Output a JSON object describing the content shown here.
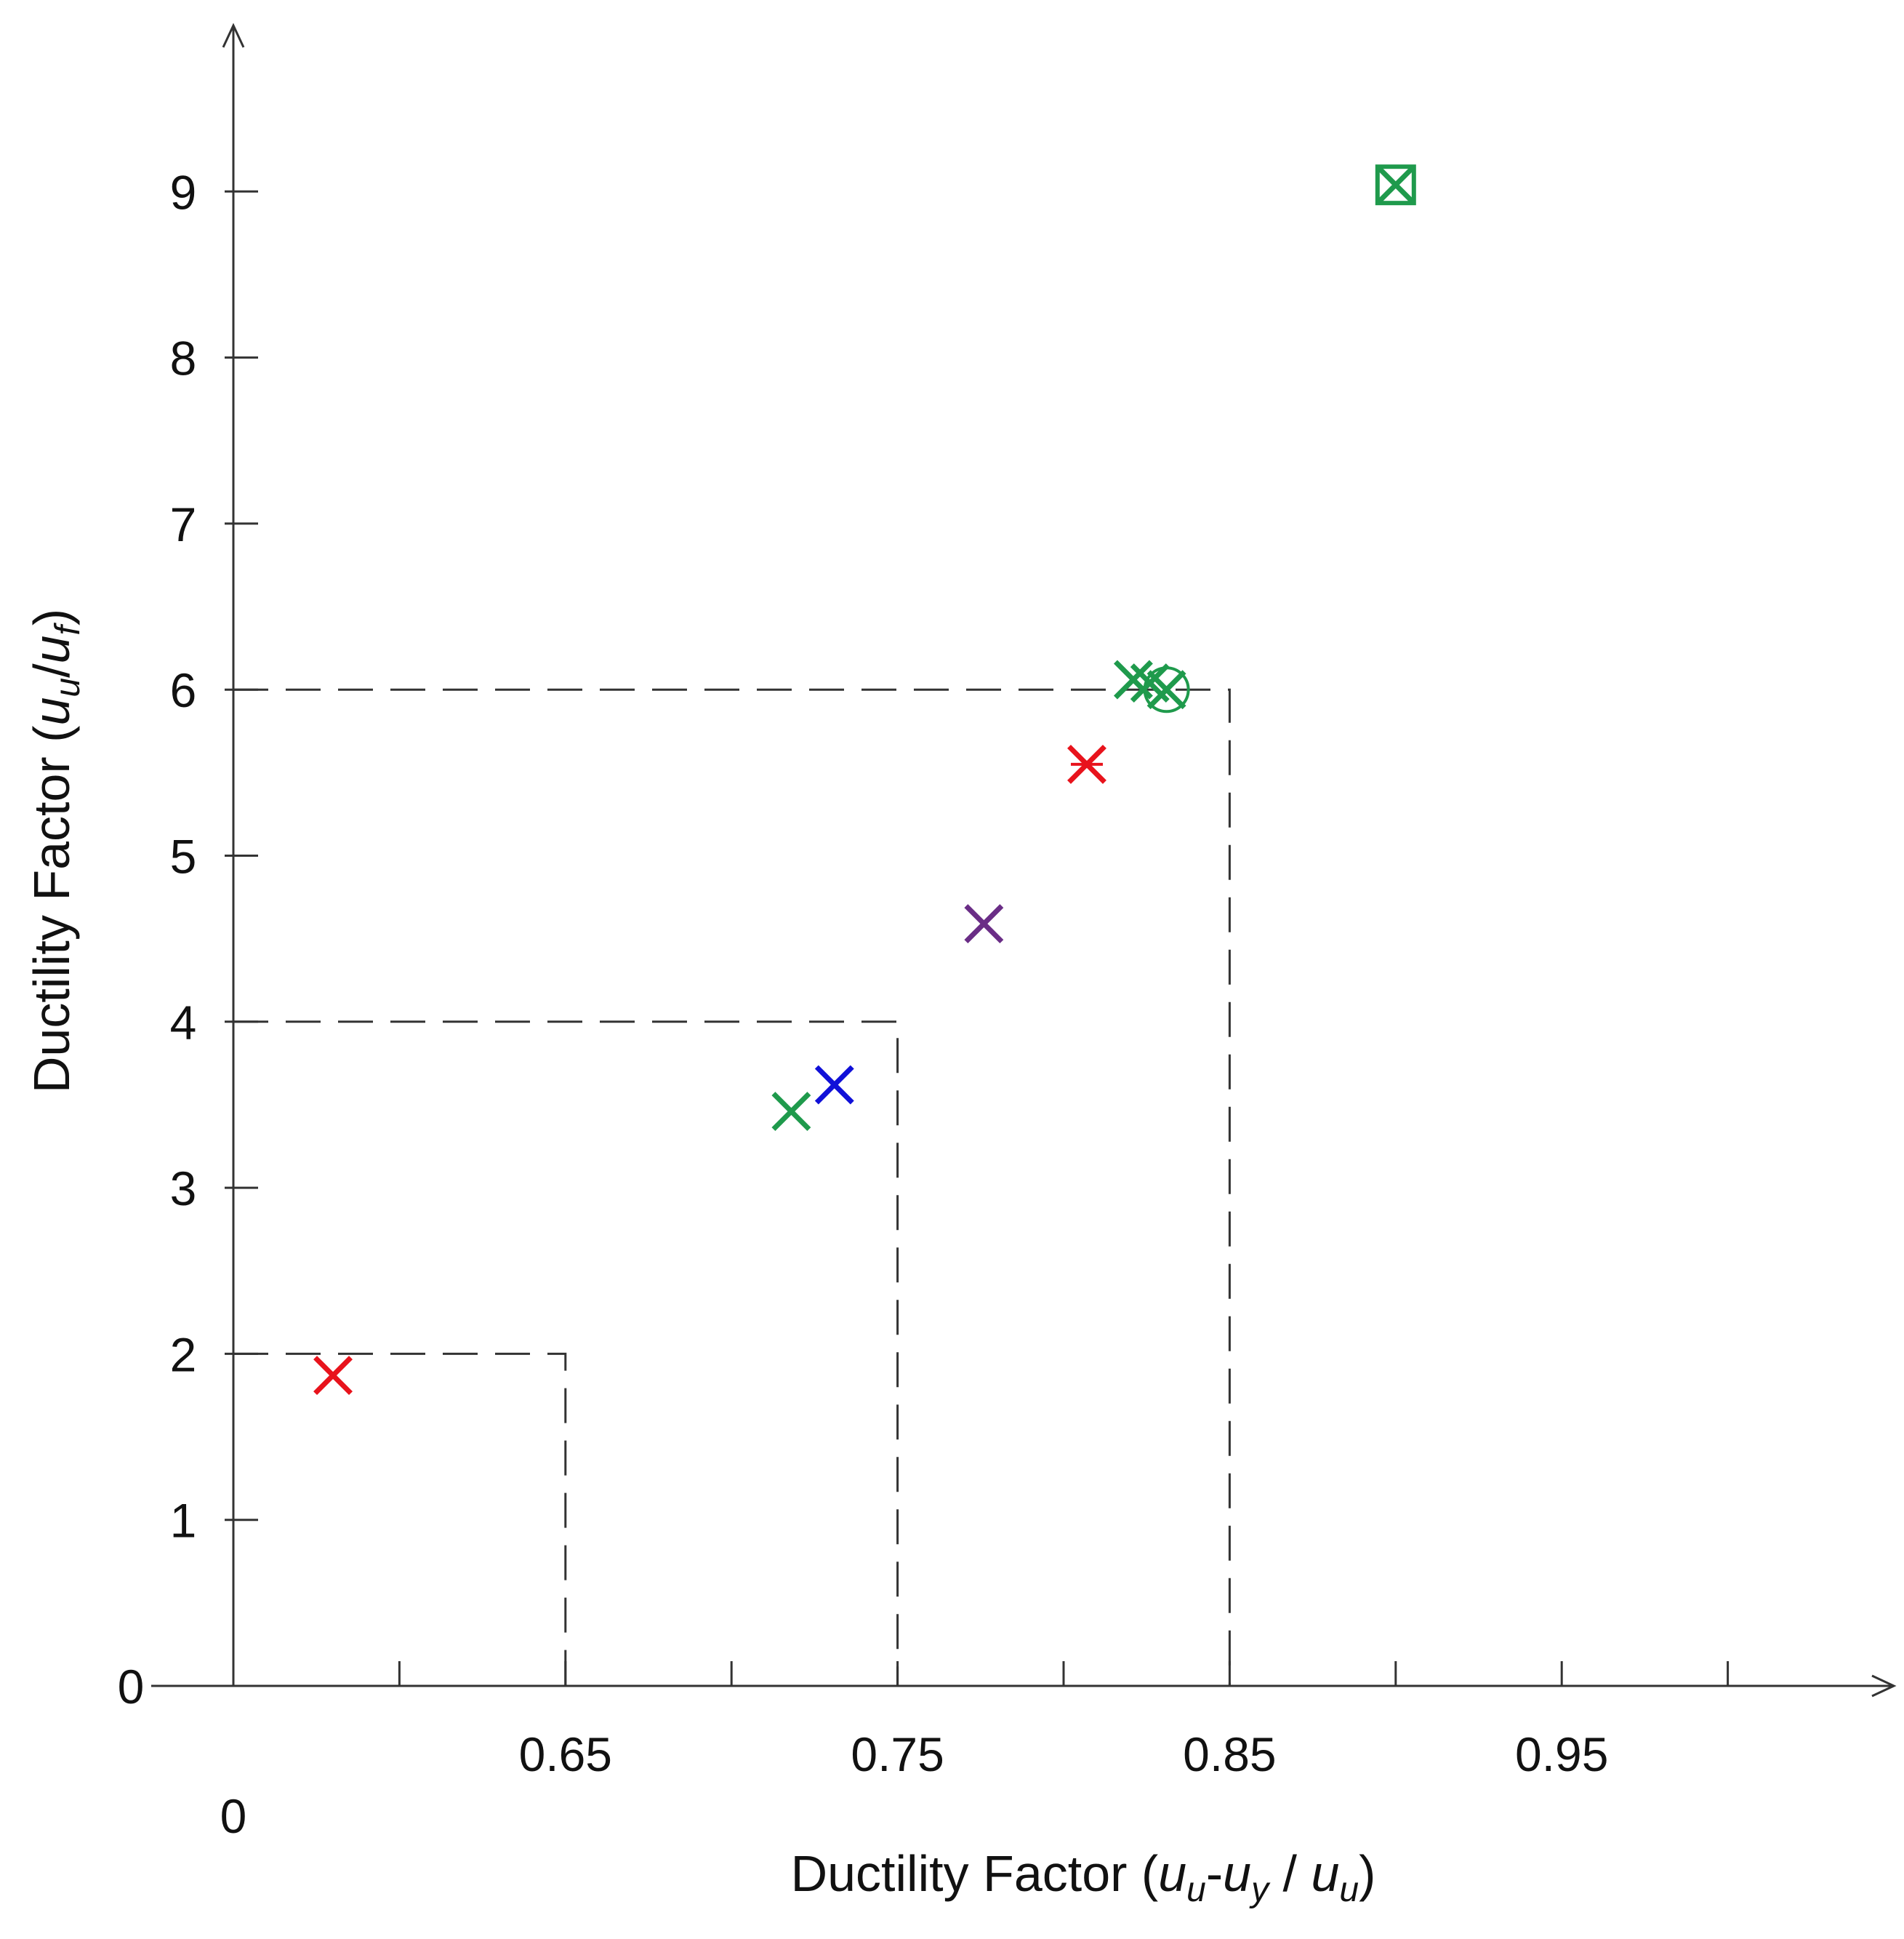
{
  "chart_data": {
    "type": "scatter",
    "title": "",
    "xlabel": {
      "prefix": "Ductility Factor (",
      "a": "u",
      "a_sub": "u",
      "dash": "-",
      "b": "u",
      "b_sub": "y",
      "slash": " / ",
      "c": "u",
      "c_sub": "u",
      "suffix": ")"
    },
    "ylabel": {
      "prefix": "Ductility Factor (",
      "a": "u",
      "a_sub": "u",
      "slash": "/",
      "b": "u",
      "b_sub": "f",
      "suffix": ")"
    },
    "xlim": [
      0.55,
      1.05
    ],
    "ylim": [
      0,
      10
    ],
    "x_origin_label": "0",
    "x_ticks": [
      0.6,
      0.65,
      0.7,
      0.75,
      0.8,
      0.85,
      0.9,
      0.95,
      1.0
    ],
    "x_tick_labels": [
      {
        "value": 0.65,
        "label": "0.65"
      },
      {
        "value": 0.75,
        "label": "0.75"
      },
      {
        "value": 0.85,
        "label": "0.85"
      },
      {
        "value": 0.95,
        "label": "0.95"
      }
    ],
    "y_ticks": [
      0,
      1,
      2,
      3,
      4,
      5,
      6,
      7,
      8,
      9
    ],
    "y_tick_labels": [
      "0",
      "1",
      "2",
      "3",
      "4",
      "5",
      "6",
      "7",
      "8",
      "9"
    ],
    "grid": false,
    "guide_boxes": [
      {
        "x": 0.65,
        "y": 2
      },
      {
        "x": 0.75,
        "y": 4
      },
      {
        "x": 0.85,
        "y": 6
      }
    ],
    "points": [
      {
        "x": 0.58,
        "y": 1.87,
        "color": "#e8131c",
        "marker": "x"
      },
      {
        "x": 0.718,
        "y": 3.46,
        "color": "#1f9a4c",
        "marker": "x"
      },
      {
        "x": 0.731,
        "y": 3.62,
        "color": "#1010d8",
        "marker": "x"
      },
      {
        "x": 0.776,
        "y": 4.59,
        "color": "#6a2d86",
        "marker": "x"
      },
      {
        "x": 0.807,
        "y": 5.55,
        "color": "#e8131c",
        "marker": "x-box"
      },
      {
        "x": 0.821,
        "y": 6.06,
        "color": "#1f9a4c",
        "marker": "x"
      },
      {
        "x": 0.826,
        "y": 6.04,
        "color": "#1f9a4c",
        "marker": "x"
      },
      {
        "x": 0.831,
        "y": 6.0,
        "color": "#1f9a4c",
        "marker": "x-circle"
      },
      {
        "x": 0.9,
        "y": 9.04,
        "color": "#1f9a4c",
        "marker": "x-square"
      }
    ]
  }
}
